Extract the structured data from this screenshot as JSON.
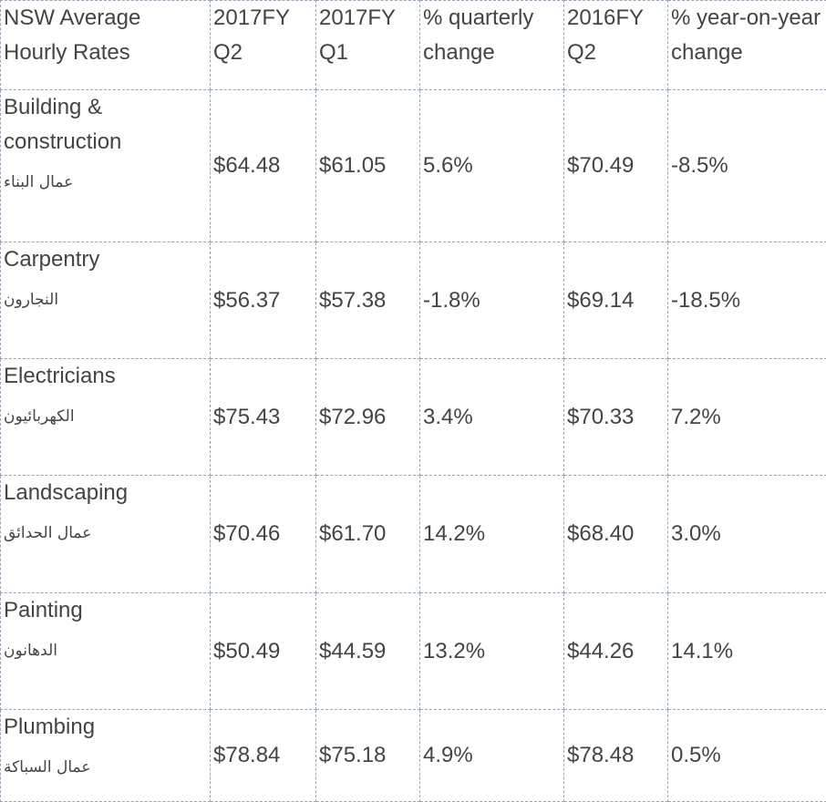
{
  "header": [
    "NSW Average Hourly Rates",
    "2017FY Q2",
    "2017FY Q1",
    "% quarterly change",
    "2016FY Q2",
    "% year-on-year change"
  ],
  "rows": [
    {
      "name": "Building & construction",
      "arabic": "عمال البناء",
      "values": [
        "$64.48",
        "$61.05",
        "5.6%",
        "$70.49",
        "-8.5%"
      ]
    },
    {
      "name": "Carpentry",
      "arabic": "النجارون",
      "values": [
        "$56.37",
        "$57.38",
        "-1.8%",
        "$69.14",
        "-18.5%"
      ]
    },
    {
      "name": "Electricians",
      "arabic": "الكهربائيون",
      "values": [
        "$75.43",
        "$72.96",
        "3.4%",
        "$70.33",
        "7.2%"
      ]
    },
    {
      "name": "Landscaping",
      "arabic": "عمال الحدائق",
      "values": [
        "$70.46",
        "$61.70",
        "14.2%",
        "$68.40",
        "3.0%"
      ]
    },
    {
      "name": "Painting",
      "arabic": "الدهانون",
      "values": [
        "$50.49",
        "$44.59",
        "13.2%",
        "$44.26",
        "14.1%"
      ]
    },
    {
      "name": "Plumbing",
      "arabic": "عمال السباكة",
      "values": [
        "$78.84",
        "$75.18",
        "4.9%",
        "$78.48",
        "0.5%"
      ]
    }
  ]
}
